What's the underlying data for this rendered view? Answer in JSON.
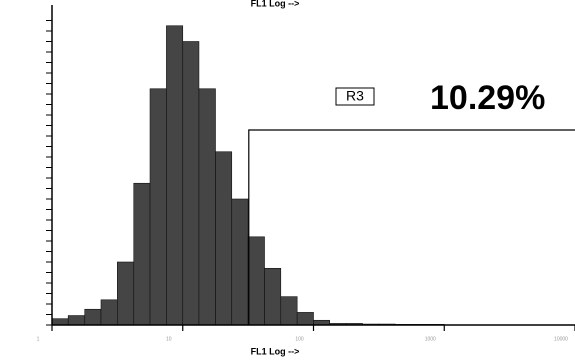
{
  "chart_data": {
    "type": "histogram",
    "x_label": "FL1 Log -->",
    "x_label_top": "FL1 Log -->",
    "log_x": true,
    "xlim": [
      1,
      10000
    ],
    "xticks": [
      1,
      10,
      100,
      1000,
      10000
    ],
    "ylim": [
      0,
      100
    ],
    "color": "#454545",
    "bins": [
      1,
      1.33,
      1.78,
      2.37,
      3.16,
      4.22,
      5.62,
      7.5,
      10,
      13.3,
      17.8,
      23.7,
      31.6,
      42.2,
      56.2,
      75,
      100,
      133,
      178,
      237,
      316,
      422,
      562,
      750,
      1000
    ],
    "counts": [
      2,
      3,
      5,
      8,
      20,
      45,
      75,
      95,
      90,
      75,
      55,
      40,
      28,
      18,
      9,
      4,
      1.5,
      0.5,
      0.5,
      0.3,
      0.3,
      0.2,
      0.2,
      0.2
    ],
    "gate": {
      "name": "R3",
      "start": 32,
      "percent": 10.29,
      "percent_label": "10.29%"
    }
  }
}
